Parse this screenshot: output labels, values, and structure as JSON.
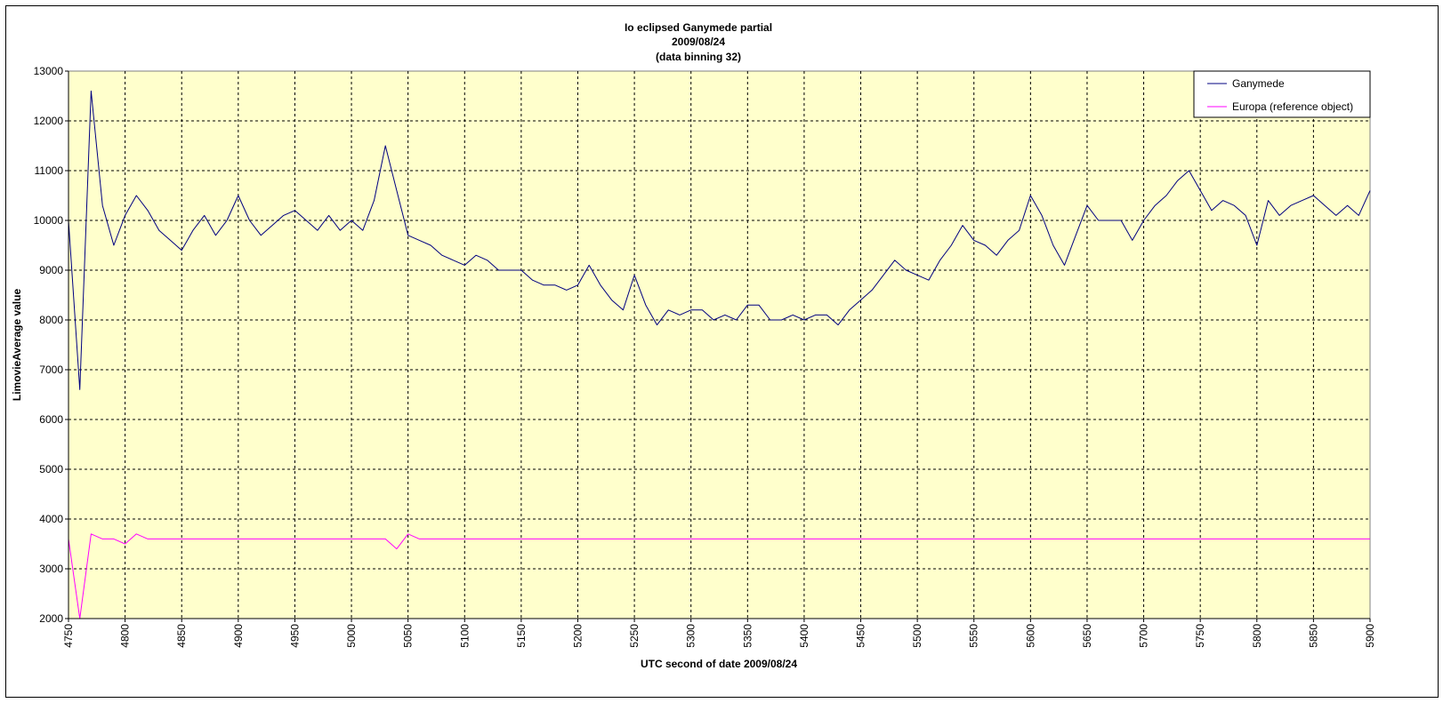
{
  "chart_data": {
    "type": "line",
    "title": [
      "Io eclipsed Ganymede partial",
      "2009/08/24",
      "(data binning 32)"
    ],
    "xlabel": "UTC second of date 2009/08/24",
    "ylabel": "LimovieAverage value",
    "xlim": [
      4750,
      5900
    ],
    "ylim": [
      2000,
      13000
    ],
    "xticks": [
      4750,
      4800,
      4850,
      4900,
      4950,
      5000,
      5050,
      5100,
      5150,
      5200,
      5250,
      5300,
      5350,
      5400,
      5450,
      5500,
      5550,
      5600,
      5650,
      5700,
      5750,
      5800,
      5850,
      5900
    ],
    "yticks": [
      2000,
      3000,
      4000,
      5000,
      6000,
      7000,
      8000,
      9000,
      10000,
      11000,
      12000,
      13000
    ],
    "grid": true,
    "legend": "top-right",
    "plot_background": "#ffffcc",
    "series": [
      {
        "name": "Ganymede",
        "color": "#000080",
        "x": [
          4750,
          4760,
          4770,
          4780,
          4790,
          4800,
          4810,
          4820,
          4830,
          4840,
          4850,
          4860,
          4870,
          4880,
          4890,
          4900,
          4910,
          4920,
          4930,
          4940,
          4950,
          4960,
          4970,
          4980,
          4990,
          5000,
          5010,
          5020,
          5030,
          5040,
          5050,
          5060,
          5070,
          5080,
          5090,
          5100,
          5110,
          5120,
          5130,
          5140,
          5150,
          5160,
          5170,
          5180,
          5190,
          5200,
          5210,
          5220,
          5230,
          5240,
          5250,
          5260,
          5270,
          5280,
          5290,
          5300,
          5310,
          5320,
          5330,
          5340,
          5350,
          5360,
          5370,
          5380,
          5390,
          5400,
          5410,
          5420,
          5430,
          5440,
          5450,
          5460,
          5470,
          5480,
          5490,
          5500,
          5510,
          5520,
          5530,
          5540,
          5550,
          5560,
          5570,
          5580,
          5590,
          5600,
          5610,
          5620,
          5630,
          5640,
          5650,
          5660,
          5670,
          5680,
          5690,
          5700,
          5710,
          5720,
          5730,
          5740,
          5750,
          5760,
          5770,
          5780,
          5790,
          5800,
          5810,
          5820,
          5830,
          5840,
          5850,
          5860,
          5870,
          5880,
          5890,
          5900
        ],
        "values": [
          10000,
          6600,
          12600,
          10300,
          9500,
          10100,
          10500,
          10200,
          9800,
          9600,
          9400,
          9800,
          10100,
          9700,
          10000,
          10500,
          10000,
          9700,
          9900,
          10100,
          10200,
          10000,
          9800,
          10100,
          9800,
          10000,
          9800,
          10400,
          11500,
          10600,
          9700,
          9600,
          9500,
          9300,
          9200,
          9100,
          9300,
          9200,
          9000,
          9000,
          9000,
          8800,
          8700,
          8700,
          8600,
          8700,
          9100,
          8700,
          8400,
          8200,
          8900,
          8300,
          7900,
          8200,
          8100,
          8200,
          8200,
          8000,
          8100,
          8000,
          8300,
          8300,
          8000,
          8000,
          8100,
          8000,
          8100,
          8100,
          7900,
          8200,
          8400,
          8600,
          8900,
          9200,
          9000,
          8900,
          8800,
          9200,
          9500,
          9900,
          9600,
          9500,
          9300,
          9600,
          9800,
          10500,
          10100,
          9500,
          9100,
          9700,
          10300,
          10000,
          10000,
          10000,
          9600,
          10000,
          10300,
          10500,
          10800,
          11000,
          10600,
          10200,
          10400,
          10300,
          10100,
          9500,
          10400,
          10100,
          10300,
          10400,
          10500,
          10300,
          10100,
          10300,
          10100,
          10600
        ]
      },
      {
        "name": "Europa (reference object)",
        "color": "#ff00ff",
        "x": [
          4750,
          4760,
          4770,
          4780,
          4790,
          4800,
          4810,
          4820,
          4830,
          4840,
          4850,
          4860,
          4870,
          4880,
          4890,
          4900,
          4910,
          4920,
          4930,
          4940,
          4950,
          4960,
          4970,
          4980,
          4990,
          5000,
          5010,
          5020,
          5030,
          5040,
          5050,
          5060,
          5070,
          5080,
          5090,
          5100,
          5110,
          5120,
          5130,
          5140,
          5150,
          5160,
          5170,
          5180,
          5190,
          5200,
          5210,
          5220,
          5230,
          5240,
          5250,
          5260,
          5270,
          5280,
          5290,
          5300,
          5310,
          5320,
          5330,
          5340,
          5350,
          5360,
          5370,
          5380,
          5390,
          5400,
          5410,
          5420,
          5430,
          5440,
          5450,
          5460,
          5470,
          5480,
          5490,
          5500,
          5510,
          5520,
          5530,
          5540,
          5550,
          5560,
          5570,
          5580,
          5590,
          5600,
          5610,
          5620,
          5630,
          5640,
          5650,
          5660,
          5670,
          5680,
          5690,
          5700,
          5710,
          5720,
          5730,
          5740,
          5750,
          5760,
          5770,
          5780,
          5790,
          5800,
          5810,
          5820,
          5830,
          5840,
          5850,
          5860,
          5870,
          5880,
          5890,
          5900
        ],
        "values": [
          3600,
          2000,
          3700,
          3600,
          3600,
          3500,
          3700,
          3600,
          3600,
          3600,
          3600,
          3600,
          3600,
          3600,
          3600,
          3600,
          3600,
          3600,
          3600,
          3600,
          3600,
          3600,
          3600,
          3600,
          3600,
          3600,
          3600,
          3600,
          3600,
          3400,
          3700,
          3600,
          3600,
          3600,
          3600,
          3600,
          3600,
          3600,
          3600,
          3600,
          3600,
          3600,
          3600,
          3600,
          3600,
          3600,
          3600,
          3600,
          3600,
          3600,
          3600,
          3600,
          3600,
          3600,
          3600,
          3600,
          3600,
          3600,
          3600,
          3600,
          3600,
          3600,
          3600,
          3600,
          3600,
          3600,
          3600,
          3600,
          3600,
          3600,
          3600,
          3600,
          3600,
          3600,
          3600,
          3600,
          3600,
          3600,
          3600,
          3600,
          3600,
          3600,
          3600,
          3600,
          3600,
          3600,
          3600,
          3600,
          3600,
          3600,
          3600,
          3600,
          3600,
          3600,
          3600,
          3600,
          3600,
          3600,
          3600,
          3600,
          3600,
          3600,
          3600,
          3600,
          3600,
          3600,
          3600,
          3600,
          3600,
          3600,
          3600,
          3600,
          3600,
          3600,
          3600,
          3600
        ]
      }
    ]
  }
}
